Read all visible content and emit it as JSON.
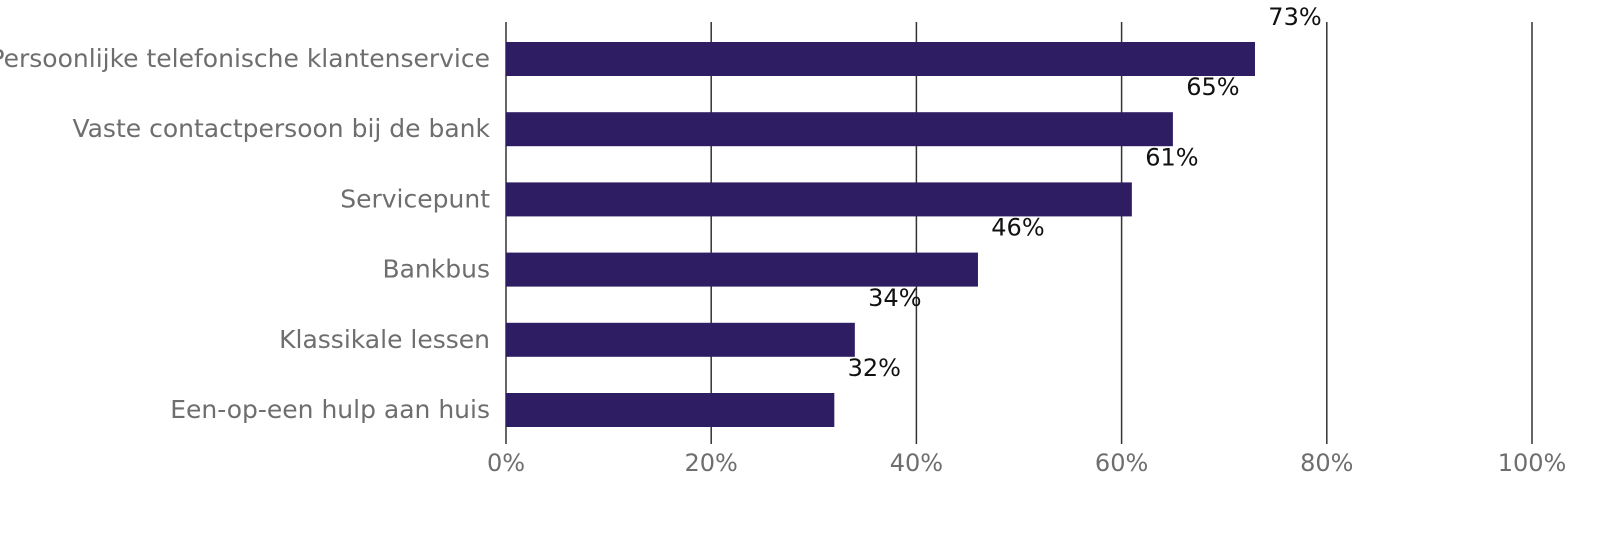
{
  "chart_data": {
    "type": "bar",
    "orientation": "horizontal",
    "categories": [
      "Persoonlijke telefonische klantenservice",
      "Vaste contactpersoon bij de bank",
      "Servicepunt",
      "Bankbus",
      "Klassikale lessen",
      "Een-op-een hulp aan huis"
    ],
    "values": [
      73,
      65,
      61,
      46,
      34,
      32
    ],
    "data_labels": [
      "73%",
      "65%",
      "61%",
      "46%",
      "34%",
      "32%"
    ],
    "xlim": [
      0,
      100
    ],
    "xticks": [
      0,
      20,
      40,
      60,
      80,
      100
    ],
    "xtick_labels": [
      "0%",
      "20%",
      "40%",
      "60%",
      "80%",
      "100%"
    ],
    "grid": true,
    "legend": "none",
    "bar_color": "#2e1d63",
    "title": "",
    "xlabel": "",
    "ylabel": ""
  }
}
